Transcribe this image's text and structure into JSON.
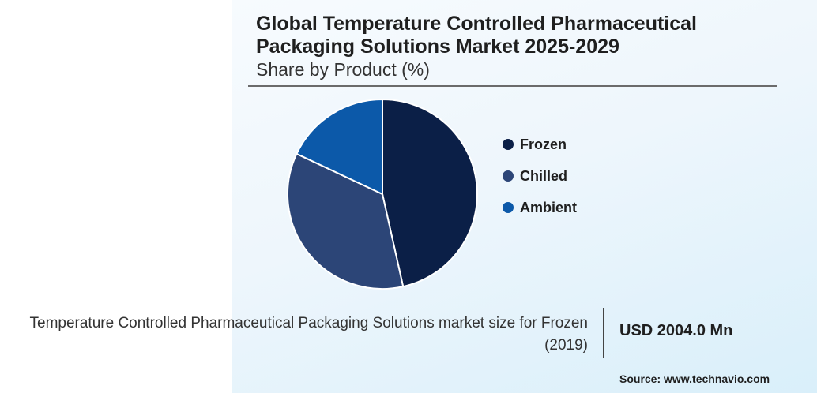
{
  "chart_data": {
    "type": "pie",
    "title": "Global Temperature Controlled Pharmaceutical Packaging Solutions Market 2025-2029",
    "subtitle": "Share by Product (%)",
    "slices": [
      {
        "label": "Frozen",
        "value": 46.5,
        "color": "#0b1f47"
      },
      {
        "label": "Chilled",
        "value": 35.5,
        "color": "#2c4577"
      },
      {
        "label": "Ambient",
        "value": 18.0,
        "color": "#0c59a9"
      }
    ],
    "legend_position": "right"
  },
  "footer": {
    "description": "Temperature Controlled Pharmaceutical Packaging Solutions market size for Frozen (2019)",
    "value": "USD 2004.0 Mn",
    "source": "Source: www.technavio.com"
  }
}
